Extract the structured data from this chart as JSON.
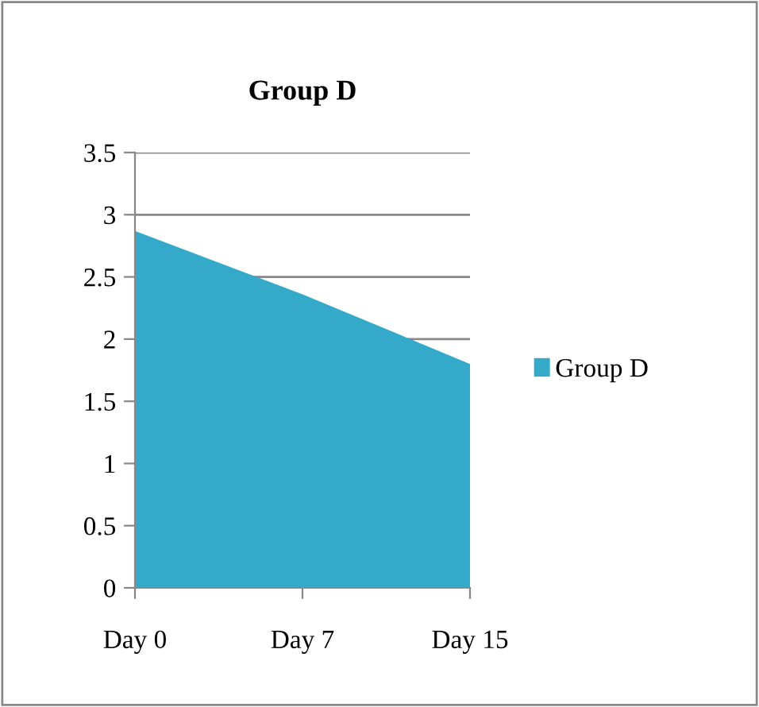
{
  "chart_data": {
    "type": "area",
    "title": "Group D",
    "categories": [
      "Day 0",
      "Day 7",
      "Day 15"
    ],
    "series": [
      {
        "name": "Group D",
        "color": "#35a9c9",
        "values": [
          2.87,
          2.36,
          1.8
        ]
      }
    ],
    "ylim": [
      0,
      3.5
    ],
    "yticks": [
      0,
      0.5,
      1,
      1.5,
      2,
      2.5,
      3,
      3.5
    ],
    "grid": "y",
    "legend": "right"
  }
}
